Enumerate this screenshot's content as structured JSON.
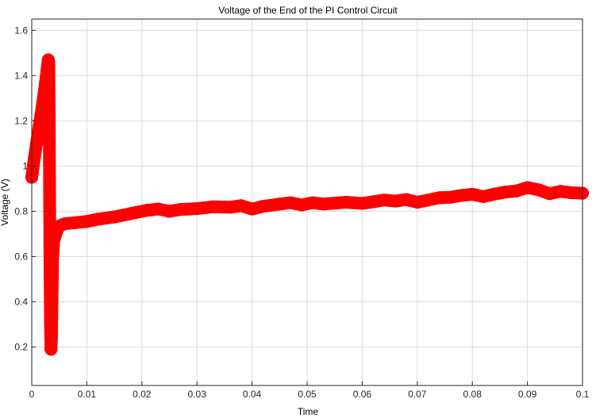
{
  "chart_data": {
    "type": "line",
    "title": "Voltage of the End of the PI Control Circuit",
    "xlabel": "Time",
    "ylabel": "Voltage (V)",
    "xlim": [
      0,
      0.1
    ],
    "ylim": [
      0.03,
      1.65
    ],
    "xticks": [
      0,
      0.01,
      0.02,
      0.03,
      0.04,
      0.05,
      0.06,
      0.07,
      0.08,
      0.09,
      0.1
    ],
    "yticks": [
      0.2,
      0.4,
      0.6,
      0.8,
      1,
      1.2,
      1.4,
      1.6
    ],
    "grid": true,
    "series": [
      {
        "color": "#ff0000",
        "marker": "circle",
        "points": [
          [
            0.0,
            0.95
          ],
          [
            0.0005,
            1.04
          ],
          [
            0.001,
            1.12
          ],
          [
            0.0015,
            1.2
          ],
          [
            0.002,
            1.28
          ],
          [
            0.0025,
            1.37
          ],
          [
            0.003,
            1.47
          ],
          [
            0.0031,
            1.46
          ],
          [
            0.0032,
            1.1
          ],
          [
            0.0033,
            0.6
          ],
          [
            0.0034,
            0.3
          ],
          [
            0.0035,
            0.19
          ],
          [
            0.0036,
            0.25
          ],
          [
            0.0037,
            0.45
          ],
          [
            0.0038,
            0.6
          ],
          [
            0.004,
            0.67
          ],
          [
            0.0045,
            0.71
          ],
          [
            0.005,
            0.735
          ],
          [
            0.006,
            0.745
          ],
          [
            0.008,
            0.75
          ],
          [
            0.01,
            0.755
          ],
          [
            0.012,
            0.765
          ],
          [
            0.015,
            0.775
          ],
          [
            0.018,
            0.79
          ],
          [
            0.021,
            0.805
          ],
          [
            0.023,
            0.81
          ],
          [
            0.025,
            0.8
          ],
          [
            0.027,
            0.808
          ],
          [
            0.03,
            0.812
          ],
          [
            0.033,
            0.82
          ],
          [
            0.036,
            0.818
          ],
          [
            0.038,
            0.825
          ],
          [
            0.04,
            0.81
          ],
          [
            0.042,
            0.822
          ],
          [
            0.045,
            0.832
          ],
          [
            0.047,
            0.838
          ],
          [
            0.049,
            0.828
          ],
          [
            0.051,
            0.838
          ],
          [
            0.053,
            0.832
          ],
          [
            0.055,
            0.836
          ],
          [
            0.057,
            0.84
          ],
          [
            0.06,
            0.835
          ],
          [
            0.062,
            0.842
          ],
          [
            0.064,
            0.85
          ],
          [
            0.066,
            0.845
          ],
          [
            0.068,
            0.852
          ],
          [
            0.07,
            0.84
          ],
          [
            0.072,
            0.85
          ],
          [
            0.074,
            0.86
          ],
          [
            0.076,
            0.862
          ],
          [
            0.078,
            0.87
          ],
          [
            0.08,
            0.875
          ],
          [
            0.082,
            0.865
          ],
          [
            0.084,
            0.876
          ],
          [
            0.086,
            0.885
          ],
          [
            0.088,
            0.89
          ],
          [
            0.09,
            0.905
          ],
          [
            0.092,
            0.895
          ],
          [
            0.094,
            0.878
          ],
          [
            0.096,
            0.888
          ],
          [
            0.098,
            0.882
          ],
          [
            0.1,
            0.88
          ]
        ]
      }
    ]
  }
}
